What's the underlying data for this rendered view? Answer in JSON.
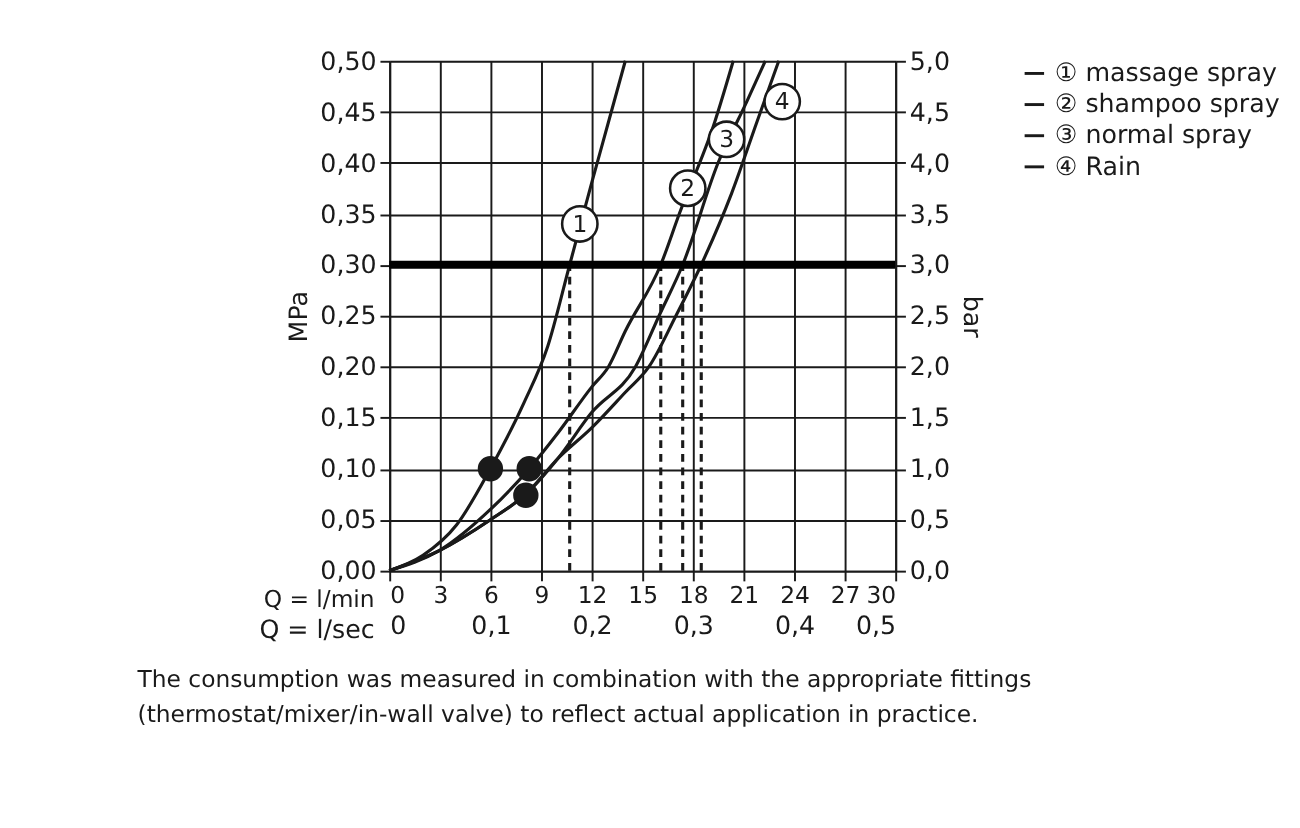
{
  "chart_data": {
    "type": "line",
    "xlabel": "Q = l/min",
    "x2label": "Q = l/sec",
    "ylabel": "MPa",
    "y2label": "bar",
    "xlim": [
      0,
      30
    ],
    "xticks": [
      0,
      3,
      6,
      9,
      12,
      15,
      18,
      21,
      24,
      27,
      30
    ],
    "x2lim": [
      0,
      0.5
    ],
    "x2ticks": [
      0,
      {
        "value": 0.1,
        "label": "0,1"
      },
      {
        "value": 0.2,
        "label": "0,2"
      },
      {
        "value": 0.3,
        "label": "0,3"
      },
      {
        "value": 0.4,
        "label": "0,4"
      },
      {
        "value": 0.5,
        "label": "0,5"
      }
    ],
    "ylim": [
      0,
      0.5
    ],
    "yticks": [
      {
        "value": 0,
        "label": "0,00"
      },
      {
        "value": 0.05,
        "label": "0,05"
      },
      {
        "value": 0.1,
        "label": "0,10"
      },
      {
        "value": 0.15,
        "label": "0,15"
      },
      {
        "value": 0.2,
        "label": "0,20"
      },
      {
        "value": 0.25,
        "label": "0,25"
      },
      {
        "value": 0.3,
        "label": "0,30"
      },
      {
        "value": 0.35,
        "label": "0,35"
      },
      {
        "value": 0.4,
        "label": "0,40"
      },
      {
        "value": 0.45,
        "label": "0,45"
      },
      {
        "value": 0.5,
        "label": "0,50"
      }
    ],
    "y2lim": [
      0,
      5
    ],
    "y2ticks": [
      {
        "value": 0,
        "label": "0,0"
      },
      {
        "value": 0.5,
        "label": "0,5"
      },
      {
        "value": 1,
        "label": "1,0"
      },
      {
        "value": 1.5,
        "label": "1,5"
      },
      {
        "value": 2,
        "label": "2,0"
      },
      {
        "value": 2.5,
        "label": "2,5"
      },
      {
        "value": 3,
        "label": "3,0"
      },
      {
        "value": 3.5,
        "label": "3,5"
      },
      {
        "value": 4,
        "label": "4,0"
      },
      {
        "value": 4.5,
        "label": "4,5"
      },
      {
        "value": 5,
        "label": "5,0"
      }
    ],
    "grid": true,
    "legend": "top right",
    "marker": "none",
    "line_style": "solid",
    "series": [
      {
        "name": "① massage spray",
        "color": "#1a1a1a",
        "x": [
          0,
          2,
          4,
          6,
          8,
          9.4,
          10.7,
          12,
          13,
          14
        ],
        "values": [
          0,
          0.015,
          0.045,
          0.1,
          0.165,
          0.22,
          0.3,
          0.38,
          0.44,
          0.5
        ]
      },
      {
        "name": "② shampoo spray",
        "color": "#1a1a1a",
        "x": [
          0,
          3,
          6,
          8.3,
          10,
          12,
          13,
          14,
          16.1,
          17.2,
          19.3,
          20.4
        ],
        "values": [
          0,
          0.02,
          0.06,
          0.1,
          0.135,
          0.18,
          0.2,
          0.235,
          0.3,
          0.35,
          0.44,
          0.5
        ]
      },
      {
        "name": "③ normal spray",
        "color": "#1a1a1a",
        "x": [
          0,
          3,
          6,
          8.1,
          10,
          12,
          14.6,
          16,
          17.4,
          19.5,
          21.2,
          22.3
        ],
        "values": [
          0,
          0.02,
          0.05,
          0.075,
          0.11,
          0.155,
          0.2,
          0.25,
          0.3,
          0.4,
          0.46,
          0.5
        ]
      },
      {
        "name": "④ Rain",
        "color": "#1a1a1a",
        "x": [
          0,
          3,
          6,
          8.1,
          10,
          12,
          14,
          15.4,
          17,
          18.5,
          20.3,
          21.8,
          23.1
        ],
        "values": [
          0,
          0.02,
          0.05,
          0.075,
          0.11,
          0.14,
          0.175,
          0.2,
          0.25,
          0.3,
          0.37,
          0.44,
          0.5
        ]
      },
      {
        "type": "scatter",
        "marker": "circle",
        "color": "#1a1a1a",
        "x": [
          6,
          8.3,
          8.1
        ],
        "values": [
          0.1,
          0.1,
          0.074
        ]
      },
      {
        "line_style": "dashed",
        "color": "#1a1a1a",
        "x": [
          10.7,
          10.7
        ],
        "values": [
          0,
          0.3
        ]
      },
      {
        "line_style": "dashed",
        "color": "#1a1a1a",
        "x": [
          16.1,
          16.1
        ],
        "values": [
          0,
          0.3
        ]
      },
      {
        "line_style": "dashed",
        "color": "#1a1a1a",
        "x": [
          17.4,
          17.4
        ],
        "values": [
          0,
          0.3
        ]
      },
      {
        "line_style": "dashed",
        "color": "#1a1a1a",
        "x": [
          18.5,
          18.5
        ],
        "values": [
          0,
          0.3
        ]
      }
    ],
    "ref_lines": [
      {
        "axis": "y",
        "value": 0.3,
        "color": "#000000"
      }
    ],
    "annotations": [
      {
        "text": "1",
        "x": 11.3,
        "y": 0.34
      },
      {
        "text": "2",
        "x": 17.7,
        "y": 0.375
      },
      {
        "text": "3",
        "x": 20.0,
        "y": 0.423
      },
      {
        "text": "4",
        "x": 23.3,
        "y": 0.46
      },
      "The consumption was measured in combination with the appropriate fittings (thermostat/mixer/in-wall valve) to reflect actual application in practice."
    ]
  }
}
